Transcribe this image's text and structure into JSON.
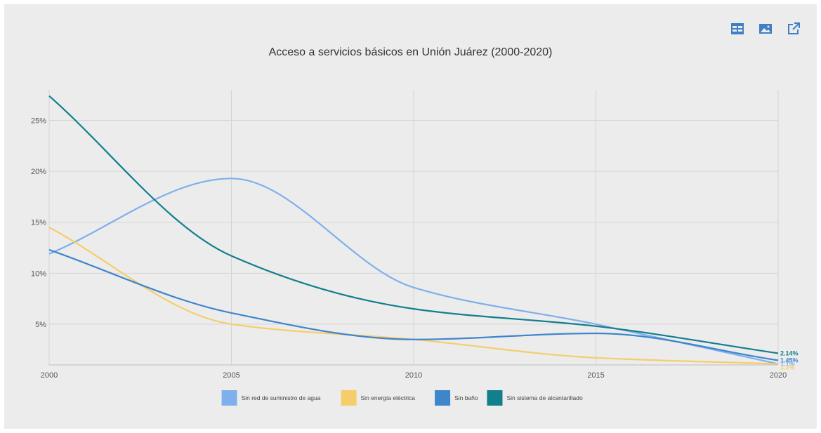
{
  "toolbar": {
    "items": [
      {
        "icon": "table-icon",
        "color": "#3f7fc4"
      },
      {
        "icon": "image-icon",
        "color": "#3f7fc4"
      },
      {
        "icon": "external-link-icon",
        "color": "#3f7fc4"
      }
    ]
  },
  "chart_data": {
    "type": "line",
    "title": "Acceso a servicios básicos en Unión Juárez (2000-2020)",
    "xlabel": "",
    "ylabel": "",
    "x": [
      2000,
      2005,
      2010,
      2015,
      2020
    ],
    "x_ticks": [
      "2000",
      "2005",
      "2010",
      "2015",
      "2020"
    ],
    "y_ticks": [
      "5%",
      "10%",
      "15%",
      "20%",
      "25%"
    ],
    "xlim": [
      2000,
      2020
    ],
    "ylim": [
      1,
      28
    ],
    "grid": true,
    "legend_position": "bottom",
    "smooth": true,
    "series": [
      {
        "name": "Sin red de suministro de agua",
        "color": "#7fb0ec",
        "values": [
          11.9,
          19.3,
          8.6,
          5.0,
          1.1
        ],
        "end_label": "1.1%"
      },
      {
        "name": "Sin energía eléctrica",
        "color": "#f5cd6a",
        "values": [
          14.5,
          5.0,
          3.5,
          1.7,
          1.1
        ],
        "end_label": "1.1%"
      },
      {
        "name": "Sin baño",
        "color": "#3f85cc",
        "values": [
          12.3,
          6.1,
          3.5,
          4.1,
          1.45
        ],
        "end_label": "1.45%"
      },
      {
        "name": "Sin sistema de alcantarillado",
        "color": "#127f8c",
        "values": [
          27.4,
          11.7,
          6.5,
          4.8,
          2.14
        ],
        "end_label": "2.14%"
      }
    ]
  }
}
